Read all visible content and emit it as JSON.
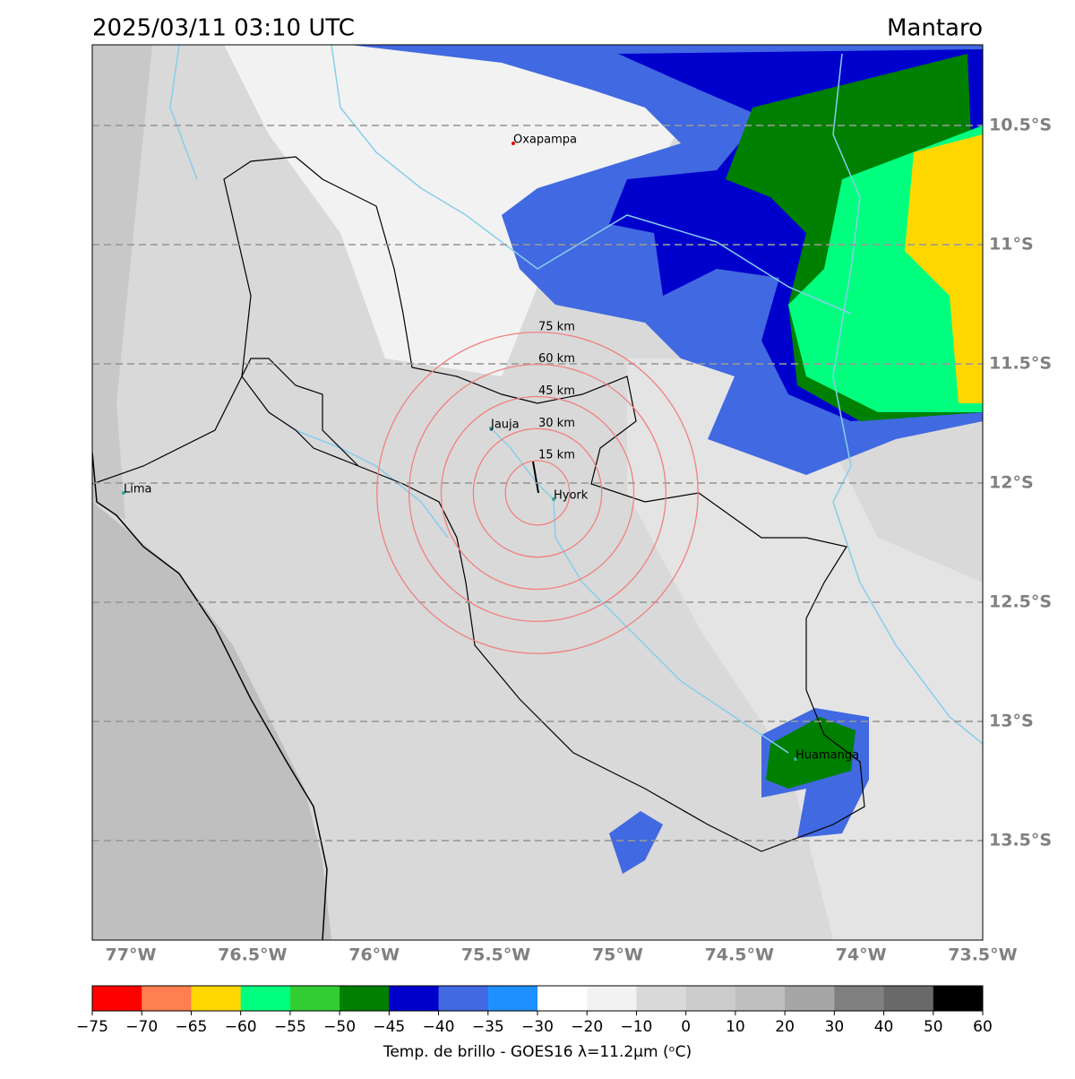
{
  "header": {
    "title": "2025/03/11 03:10 UTC",
    "region": "Mantaro"
  },
  "map": {
    "latitudes": [
      {
        "value": -10.5,
        "label": "10.5°S"
      },
      {
        "value": -11,
        "label": "11°S"
      },
      {
        "value": -11.5,
        "label": "11.5°S"
      },
      {
        "value": -12,
        "label": "12°S"
      },
      {
        "value": -12.5,
        "label": "12.5°S"
      },
      {
        "value": -13,
        "label": "13°S"
      },
      {
        "value": -13.5,
        "label": "13.5°S"
      }
    ],
    "longitudes": [
      {
        "value": -77,
        "label": "77°W"
      },
      {
        "value": -76.5,
        "label": "76.5°W"
      },
      {
        "value": -76,
        "label": "76°W"
      },
      {
        "value": -75.5,
        "label": "75.5°W"
      },
      {
        "value": -75,
        "label": "75°W"
      },
      {
        "value": -74.5,
        "label": "74.5°W"
      },
      {
        "value": -74,
        "label": "74°W"
      },
      {
        "value": -73.5,
        "label": "73.5°W"
      }
    ],
    "grid": true,
    "rings": [
      {
        "value": 15,
        "label": "15 km"
      },
      {
        "value": 30,
        "label": "30 km"
      },
      {
        "value": 45,
        "label": "45 km"
      },
      {
        "value": 60,
        "label": "60 km"
      },
      {
        "value": 75,
        "label": "75 km"
      }
    ],
    "ring_color": "#f08080",
    "places": [
      "Oxapampa",
      "Jauja",
      "Hyork",
      "Lima",
      "Huamanga"
    ]
  },
  "colorbar": {
    "bounds": [
      {
        "value": -75,
        "label": "−75"
      },
      {
        "value": -70,
        "label": "−70"
      },
      {
        "value": -65,
        "label": "−65"
      },
      {
        "value": -60,
        "label": "−60"
      },
      {
        "value": -55,
        "label": "−55"
      },
      {
        "value": -50,
        "label": "−50"
      },
      {
        "value": -45,
        "label": "−45"
      },
      {
        "value": -40,
        "label": "−40"
      },
      {
        "value": -35,
        "label": "−35"
      },
      {
        "value": -30,
        "label": "−30"
      },
      {
        "value": -20,
        "label": "−20"
      },
      {
        "value": -10,
        "label": "−10"
      },
      0,
      10,
      20,
      30,
      40,
      50,
      60
    ],
    "colors": [
      "#ff0000",
      "#ff7f50",
      "#ffd700",
      "#00ff7f",
      "#32cd32",
      "#008000",
      "#0000cd",
      "#4169e1",
      "#1e90ff",
      "#ffffff",
      "#f2f2f2",
      "#d9d9d9",
      "#cccccc",
      "#bfbfbf",
      "#a6a6a6",
      "#808080",
      "#696969",
      "#000000"
    ],
    "label": "Temp. de brillo - GOES16 λ=11.2μm (ᵒC)"
  }
}
